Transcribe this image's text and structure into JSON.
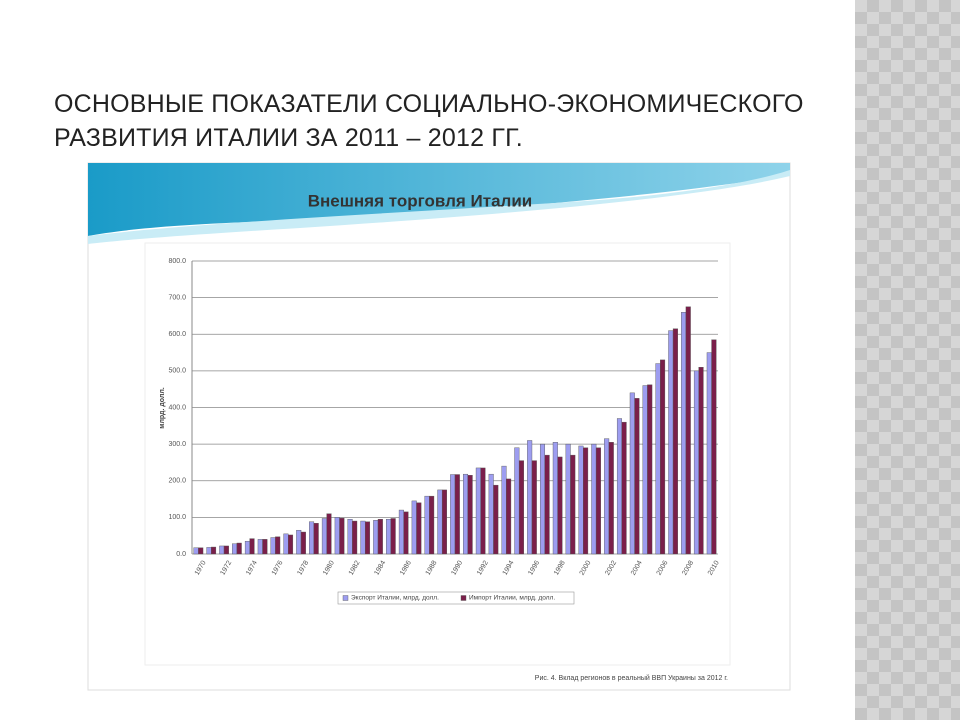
{
  "slide_title": [
    "ОСНОВНЫЕ ПОКАЗАТЕЛИ СОЦИАЛЬНО-ЭКОНОМИЧЕСКОГО",
    "РАЗВИТИЯ ИТАЛИИ ЗА 2011 – 2012 ГГ."
  ],
  "chart_data": {
    "type": "bar",
    "title": "Внешняя торговля Италии",
    "y_label": "млрд. долл.",
    "caption": "Рис. 4. Вклад регионов в реальный ВВП Украины за 2012 г.",
    "categories": [
      "1970",
      null,
      "1972",
      null,
      "1974",
      null,
      "1976",
      null,
      "1978",
      null,
      "1980",
      null,
      "1982",
      null,
      "1984",
      null,
      "1986",
      null,
      "1988",
      null,
      "1990",
      null,
      "1992",
      null,
      "1994",
      null,
      "1996",
      null,
      "1998",
      null,
      "2000",
      null,
      "2002",
      null,
      "2004",
      null,
      "2006",
      null,
      "2008",
      null,
      "2010"
    ],
    "series": [
      {
        "name": "Экспорт Италии, млрд. долл.",
        "color": "#9d9df0",
        "values": [
          17,
          18,
          22,
          28,
          35,
          40,
          45,
          55,
          65,
          88,
          97,
          100,
          95,
          90,
          92,
          95,
          120,
          145,
          158,
          175,
          217,
          218,
          235,
          218,
          240,
          290,
          310,
          300,
          305,
          300,
          295,
          300,
          315,
          370,
          440,
          460,
          520,
          610,
          660,
          500,
          550
        ]
      },
      {
        "name": "Импорт Италии, млрд. долл.",
        "color": "#7a1f4a",
        "values": [
          17,
          19,
          22,
          30,
          42,
          40,
          47,
          52,
          60,
          84,
          110,
          98,
          90,
          88,
          95,
          97,
          115,
          140,
          158,
          175,
          217,
          215,
          235,
          188,
          205,
          255,
          255,
          270,
          265,
          270,
          290,
          290,
          305,
          360,
          425,
          462,
          530,
          615,
          675,
          510,
          585
        ]
      }
    ],
    "ylim": [
      0,
      800
    ],
    "yticks": [
      {
        "value": 0,
        "label": "0.0"
      },
      {
        "value": 100,
        "label": "100.0"
      },
      {
        "value": 200,
        "label": "200.0"
      },
      {
        "value": 300,
        "label": "300.0"
      },
      {
        "value": 400,
        "label": "400.0"
      },
      {
        "value": 500,
        "label": "500.0"
      },
      {
        "value": 600,
        "label": "600.0"
      },
      {
        "value": 700,
        "label": "700.0"
      },
      {
        "value": 800,
        "label": "800.0"
      }
    ],
    "grid": true,
    "legend": "bottom"
  }
}
